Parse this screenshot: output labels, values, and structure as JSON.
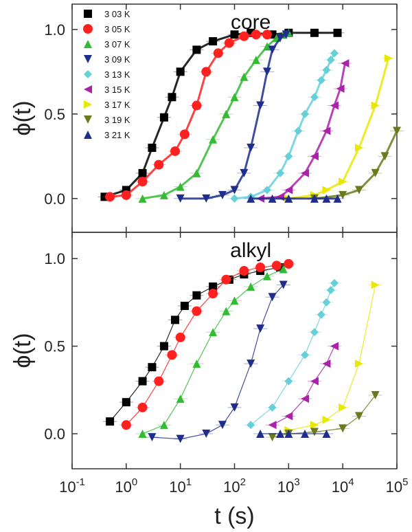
{
  "chart_data": [
    {
      "type": "scatter",
      "title": "core",
      "xlabel": "t (s)",
      "ylabel": "ϕ(t)",
      "xscale": "log",
      "xlim": [
        0.1,
        100000
      ],
      "ylim": [
        -0.2,
        1.15
      ],
      "yticks": [
        "0.0",
        "0.5",
        "1.0"
      ],
      "legend_placement": "top-left",
      "series": [
        {
          "name": "3 03 K",
          "color": "#000000",
          "marker": "square",
          "x": [
            0.4,
            1,
            2,
            3,
            5,
            7,
            10,
            20,
            40,
            100,
            200,
            500,
            1000,
            3000,
            8000
          ],
          "y": [
            0.01,
            0.05,
            0.15,
            0.3,
            0.48,
            0.6,
            0.75,
            0.88,
            0.93,
            0.97,
            0.98,
            0.97,
            0.98,
            0.98,
            0.98
          ]
        },
        {
          "name": "3 05 K",
          "color": "#ff2020",
          "marker": "circle",
          "x": [
            0.5,
            1,
            2,
            4,
            8,
            12,
            20,
            30,
            50,
            80,
            150,
            250,
            400
          ],
          "y": [
            0.01,
            0.02,
            0.1,
            0.2,
            0.28,
            0.38,
            0.55,
            0.75,
            0.86,
            0.92,
            0.96,
            0.97,
            0.97
          ]
        },
        {
          "name": "3 07 K",
          "color": "#33bb33",
          "marker": "triangle-up",
          "x": [
            2,
            5,
            10,
            20,
            40,
            70,
            100,
            150,
            250,
            400,
            600,
            800,
            1000
          ],
          "y": [
            0.0,
            0.02,
            0.07,
            0.15,
            0.35,
            0.5,
            0.6,
            0.72,
            0.82,
            0.9,
            0.95,
            0.97,
            0.98
          ]
        },
        {
          "name": "3 09 K",
          "color": "#1f2e8c",
          "marker": "triangle-down",
          "x": [
            10,
            30,
            60,
            100,
            150,
            200,
            300,
            400,
            500,
            700,
            900
          ],
          "y": [
            0.0,
            0.0,
            0.02,
            0.05,
            0.15,
            0.3,
            0.55,
            0.75,
            0.88,
            0.95,
            0.97
          ]
        },
        {
          "name": "3 13 K",
          "color": "#66d0d8",
          "marker": "diamond",
          "x": [
            100,
            200,
            400,
            700,
            1000,
            1500,
            2000,
            3000,
            4000,
            5000,
            6000,
            7000
          ],
          "y": [
            0.0,
            0.01,
            0.05,
            0.15,
            0.25,
            0.4,
            0.5,
            0.6,
            0.7,
            0.76,
            0.82,
            0.86
          ]
        },
        {
          "name": "3 15 K",
          "color": "#aa22aa",
          "marker": "triangle-left",
          "x": [
            300,
            700,
            1000,
            2000,
            3000,
            5000,
            7000,
            9000,
            11000
          ],
          "y": [
            0.0,
            0.01,
            0.05,
            0.15,
            0.25,
            0.4,
            0.55,
            0.65,
            0.8
          ]
        },
        {
          "name": "3 17 K",
          "color": "#e8e800",
          "marker": "triangle-right",
          "x": [
            1000,
            3000,
            5000,
            10000,
            20000,
            40000,
            70000
          ],
          "y": [
            0.0,
            0.02,
            0.05,
            0.1,
            0.3,
            0.55,
            0.83
          ]
        },
        {
          "name": "3 19 K",
          "color": "#6b7a1e",
          "marker": "triangle-down",
          "x": [
            3000,
            10000,
            20000,
            40000,
            60000,
            100000
          ],
          "y": [
            0.0,
            0.02,
            0.05,
            0.15,
            0.25,
            0.4
          ]
        },
        {
          "name": "3 21 K",
          "color": "#1f2e8c",
          "marker": "triangle-up",
          "x": [
            200,
            500,
            1000,
            3000,
            5000,
            8000
          ],
          "y": [
            0.0,
            0.0,
            0.0,
            0.0,
            0.0,
            0.0
          ]
        }
      ]
    },
    {
      "type": "scatter",
      "title": "alkyl",
      "xlabel": "t (s)",
      "ylabel": "ϕ(t)",
      "xscale": "log",
      "xlim": [
        0.1,
        100000
      ],
      "xticks": [
        "10-1",
        "100",
        "101",
        "102",
        "103",
        "104",
        "105"
      ],
      "ylim": [
        -0.2,
        1.15
      ],
      "yticks": [
        "0.0",
        "0.5",
        "1.0"
      ],
      "series": [
        {
          "name": "3 03 K",
          "color": "#000000",
          "marker": "square",
          "x": [
            0.5,
            1,
            2,
            3,
            5,
            8,
            12,
            20,
            40,
            80,
            150,
            300,
            700
          ],
          "y": [
            0.07,
            0.18,
            0.3,
            0.38,
            0.5,
            0.65,
            0.73,
            0.79,
            0.84,
            0.88,
            0.91,
            0.93,
            0.95
          ]
        },
        {
          "name": "3 05 K",
          "color": "#ff2020",
          "marker": "circle",
          "x": [
            1,
            2,
            4,
            7,
            10,
            20,
            40,
            70,
            150,
            300,
            600,
            1000
          ],
          "y": [
            0.05,
            0.15,
            0.3,
            0.45,
            0.55,
            0.7,
            0.8,
            0.88,
            0.93,
            0.95,
            0.96,
            0.97
          ]
        },
        {
          "name": "3 07 K",
          "color": "#33bb33",
          "marker": "triangle-up",
          "x": [
            2,
            5,
            10,
            20,
            40,
            70,
            100,
            200,
            400,
            800
          ],
          "y": [
            0.0,
            0.05,
            0.2,
            0.4,
            0.58,
            0.7,
            0.76,
            0.84,
            0.9,
            0.94
          ]
        },
        {
          "name": "3 09 K",
          "color": "#1f2e8c",
          "marker": "triangle-down",
          "x": [
            3,
            10,
            30,
            60,
            100,
            200,
            300,
            500,
            800
          ],
          "y": [
            -0.02,
            -0.03,
            0.0,
            0.05,
            0.15,
            0.4,
            0.6,
            0.78,
            0.85
          ]
        },
        {
          "name": "3 13 K",
          "color": "#66d0d8",
          "marker": "diamond",
          "x": [
            200,
            500,
            1000,
            2000,
            3000,
            4000,
            5000,
            6000,
            7000
          ],
          "y": [
            0.05,
            0.15,
            0.3,
            0.45,
            0.58,
            0.68,
            0.75,
            0.82,
            0.86
          ]
        },
        {
          "name": "3 15 K",
          "color": "#aa22aa",
          "marker": "triangle-left",
          "x": [
            500,
            1000,
            2000,
            3000,
            5000,
            7000
          ],
          "y": [
            0.05,
            0.1,
            0.2,
            0.3,
            0.4,
            0.5
          ]
        },
        {
          "name": "3 17 K",
          "color": "#e8e800",
          "marker": "triangle-right",
          "x": [
            1000,
            3000,
            5000,
            10000,
            20000,
            40000
          ],
          "y": [
            0.02,
            0.05,
            0.08,
            0.15,
            0.4,
            0.85
          ]
        },
        {
          "name": "3 19 K",
          "color": "#6b7a1e",
          "marker": "triangle-down",
          "x": [
            500,
            1000,
            3000,
            10000,
            20000,
            40000
          ],
          "y": [
            -0.02,
            0.0,
            0.01,
            0.03,
            0.1,
            0.22
          ]
        },
        {
          "name": "3 21 K",
          "color": "#1f2e8c",
          "marker": "triangle-up",
          "x": [
            300,
            700,
            1000,
            2000,
            5000
          ],
          "y": [
            0.0,
            0.0,
            0.0,
            0.0,
            0.0
          ]
        }
      ]
    }
  ]
}
